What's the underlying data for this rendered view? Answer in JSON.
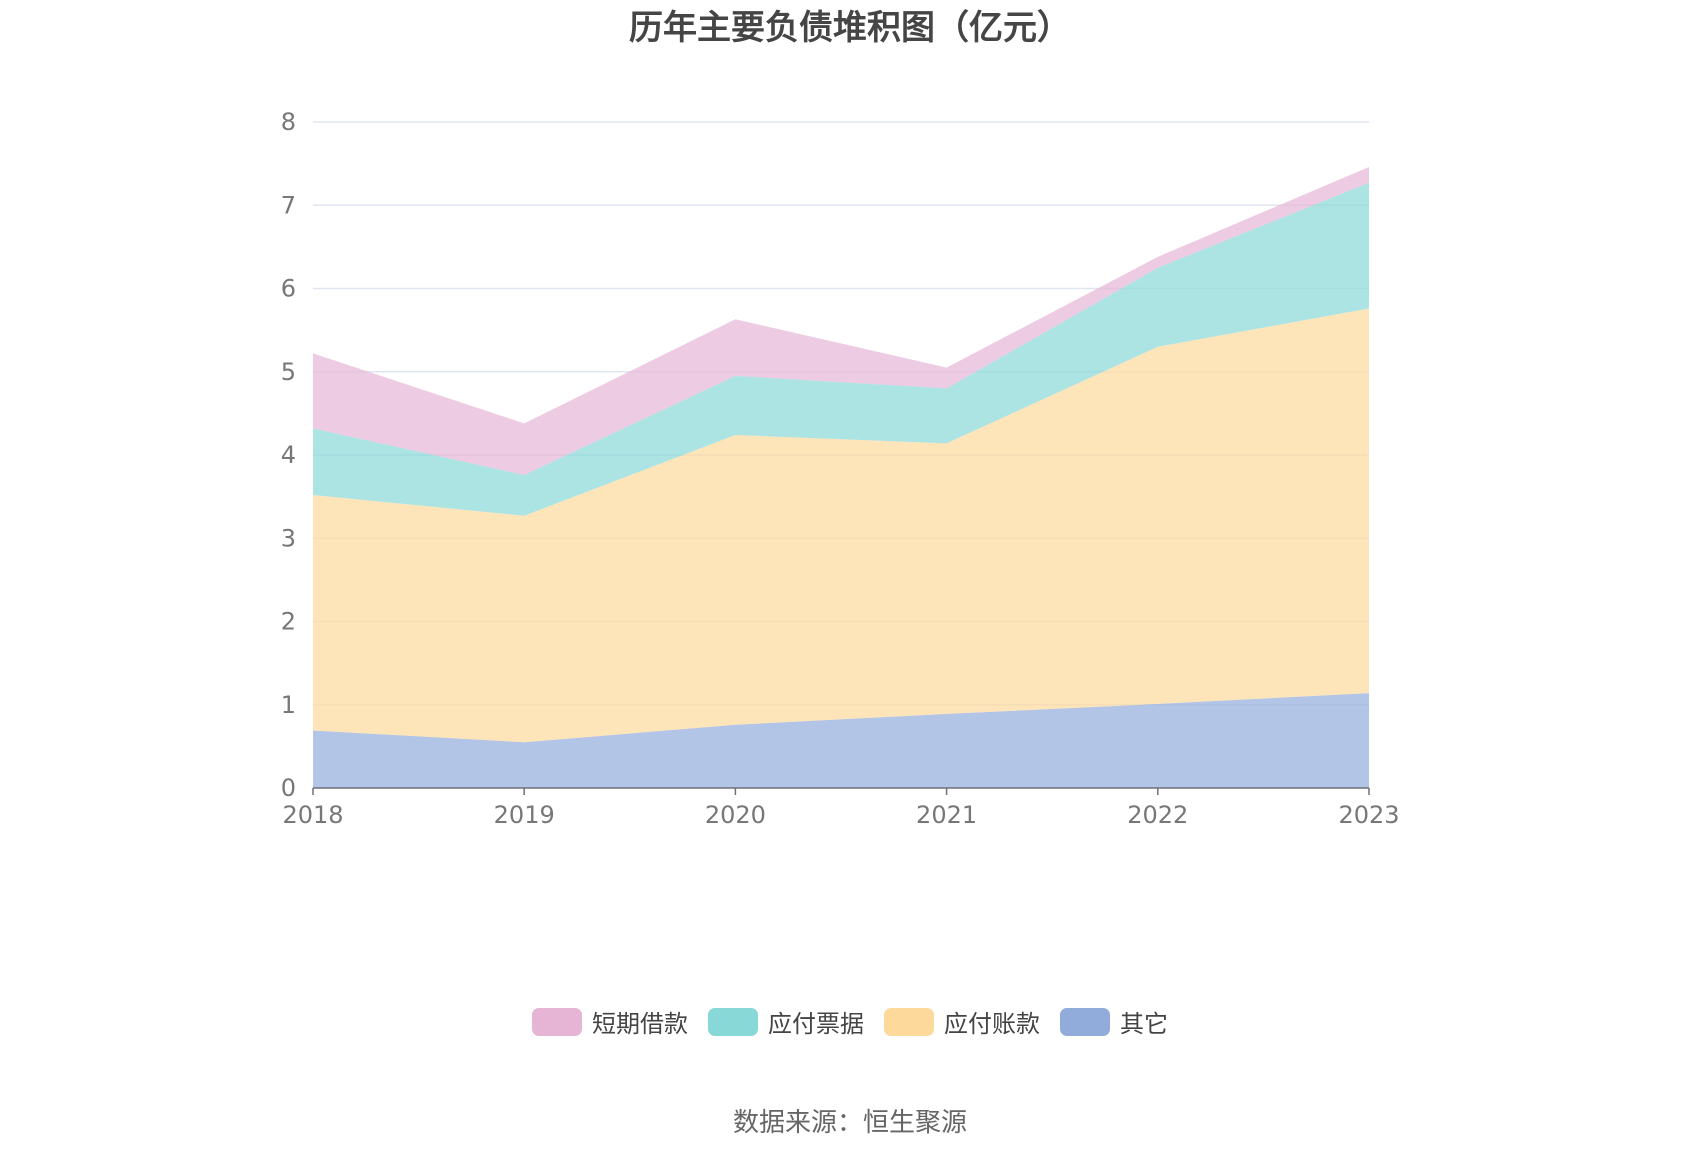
{
  "chart_data": {
    "type": "area",
    "stacked": true,
    "title": "历年主要负债堆积图（亿元）",
    "xlabel": "",
    "ylabel": "",
    "x": [
      "2018",
      "2019",
      "2020",
      "2021",
      "2022",
      "2023"
    ],
    "ylim": [
      0,
      8
    ],
    "yticks": [
      "0",
      "1",
      "2",
      "3",
      "4",
      "5",
      "6",
      "7",
      "8"
    ],
    "grid": true,
    "legend_position": "bottom",
    "series": [
      {
        "name": "其它",
        "color": "#91acdb",
        "values": [
          0.69,
          0.55,
          0.76,
          0.89,
          1.01,
          1.14
        ]
      },
      {
        "name": "应付账款",
        "color": "#fdd99b",
        "values": [
          2.83,
          2.72,
          3.48,
          3.25,
          4.29,
          4.62
        ]
      },
      {
        "name": "应付票据",
        "color": "#89d8d8",
        "values": [
          0.8,
          0.49,
          0.71,
          0.66,
          0.95,
          1.51
        ]
      },
      {
        "name": "短期借款",
        "color": "#e6b5d5",
        "values": [
          0.9,
          0.62,
          0.68,
          0.25,
          0.13,
          0.19
        ]
      }
    ]
  },
  "source_text": "数据来源：恒生聚源"
}
